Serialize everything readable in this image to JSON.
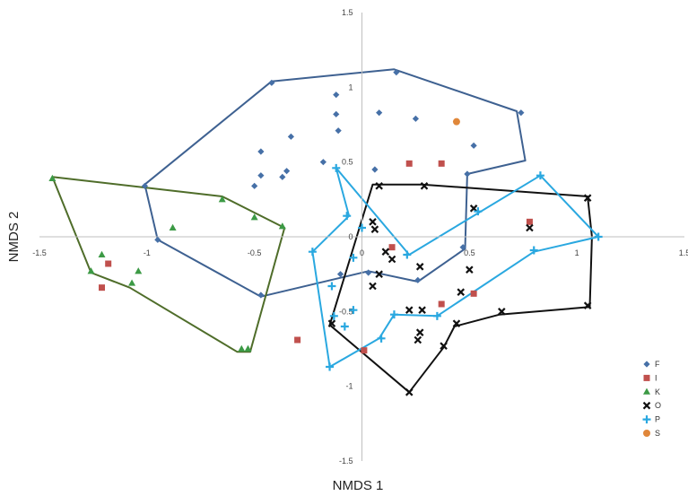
{
  "chart_data": {
    "type": "scatter",
    "xlabel": "NMDS 1",
    "ylabel": "NMDS 2",
    "xlim": [
      -1.5,
      1.5
    ],
    "ylim": [
      -1.5,
      1.5
    ],
    "x_ticks": [
      "-1.5",
      "-1",
      "-0.5",
      "0",
      "0.5",
      "1",
      "1.5"
    ],
    "y_ticks": [
      "-1.5",
      "-1",
      "-0.5",
      "0",
      "0.5",
      "1",
      "1.5"
    ],
    "grid": false,
    "legend_position": "right",
    "series": [
      {
        "name": "F",
        "marker": "diamond",
        "color": "#4670a7",
        "points": [
          [
            -0.42,
            1.03
          ],
          [
            0.16,
            1.1
          ],
          [
            -0.12,
            0.95
          ],
          [
            0.08,
            0.83
          ],
          [
            -0.12,
            0.82
          ],
          [
            0.25,
            0.79
          ],
          [
            0.74,
            0.83
          ],
          [
            -0.33,
            0.67
          ],
          [
            -0.11,
            0.71
          ],
          [
            0.52,
            0.61
          ],
          [
            -0.47,
            0.57
          ],
          [
            -0.18,
            0.5
          ],
          [
            0.06,
            0.45
          ],
          [
            0.49,
            0.42
          ],
          [
            -0.35,
            0.44
          ],
          [
            -0.37,
            0.4
          ],
          [
            -0.47,
            0.41
          ],
          [
            -0.5,
            0.34
          ],
          [
            -1.01,
            0.34
          ],
          [
            -0.95,
            -0.02
          ],
          [
            -0.47,
            -0.39
          ],
          [
            -0.1,
            -0.25
          ],
          [
            0.03,
            -0.24
          ],
          [
            0.26,
            -0.29
          ],
          [
            0.47,
            -0.07
          ]
        ]
      },
      {
        "name": "I",
        "marker": "square",
        "color": "#c0504d",
        "points": [
          [
            0.22,
            0.49
          ],
          [
            0.37,
            0.49
          ],
          [
            -1.18,
            -0.18
          ],
          [
            -1.21,
            -0.34
          ],
          [
            0.14,
            -0.07
          ],
          [
            0.52,
            -0.38
          ],
          [
            0.37,
            -0.45
          ],
          [
            -0.3,
            -0.69
          ],
          [
            0.01,
            -0.76
          ],
          [
            0.78,
            0.1
          ]
        ]
      },
      {
        "name": "K",
        "marker": "triangle",
        "color": "#3c9a45",
        "points": [
          [
            -1.44,
            0.39
          ],
          [
            -0.65,
            0.25
          ],
          [
            -0.5,
            0.13
          ],
          [
            -0.37,
            0.07
          ],
          [
            -0.88,
            0.06
          ],
          [
            -1.21,
            -0.12
          ],
          [
            -1.26,
            -0.23
          ],
          [
            -1.04,
            -0.23
          ],
          [
            -1.07,
            -0.31
          ],
          [
            -0.56,
            -0.75
          ],
          [
            -0.53,
            -0.75
          ]
        ]
      },
      {
        "name": "O",
        "marker": "cross",
        "color": "#111111",
        "points": [
          [
            0.08,
            0.34
          ],
          [
            0.29,
            0.34
          ],
          [
            0.52,
            0.19
          ],
          [
            1.05,
            0.26
          ],
          [
            0.78,
            0.06
          ],
          [
            0.05,
            0.1
          ],
          [
            0.06,
            0.05
          ],
          [
            0.11,
            -0.1
          ],
          [
            0.14,
            -0.15
          ],
          [
            0.27,
            -0.2
          ],
          [
            0.5,
            -0.22
          ],
          [
            0.08,
            -0.25
          ],
          [
            0.05,
            -0.33
          ],
          [
            0.46,
            -0.37
          ],
          [
            0.22,
            -0.49
          ],
          [
            0.28,
            -0.49
          ],
          [
            0.65,
            -0.5
          ],
          [
            1.05,
            -0.46
          ],
          [
            0.44,
            -0.58
          ],
          [
            0.27,
            -0.64
          ],
          [
            0.26,
            -0.69
          ],
          [
            -0.14,
            -0.58
          ],
          [
            0.38,
            -0.73
          ],
          [
            0.22,
            -1.04
          ]
        ]
      },
      {
        "name": "P",
        "marker": "plus",
        "color": "#2aa8e0",
        "points": [
          [
            -0.12,
            0.46
          ],
          [
            0.83,
            0.41
          ],
          [
            0.54,
            0.17
          ],
          [
            -0.07,
            0.14
          ],
          [
            1.1,
            0.0
          ],
          [
            0.0,
            0.06
          ],
          [
            -0.23,
            -0.1
          ],
          [
            0.21,
            -0.12
          ],
          [
            0.8,
            -0.09
          ],
          [
            -0.04,
            -0.14
          ],
          [
            -0.14,
            -0.33
          ],
          [
            0.15,
            -0.52
          ],
          [
            0.35,
            -0.53
          ],
          [
            -0.04,
            -0.49
          ],
          [
            -0.13,
            -0.53
          ],
          [
            -0.08,
            -0.6
          ],
          [
            0.09,
            -0.68
          ],
          [
            -0.15,
            -0.87
          ]
        ]
      },
      {
        "name": "S",
        "marker": "circle",
        "color": "#e0873a",
        "points": [
          [
            0.44,
            0.77
          ]
        ]
      }
    ],
    "hulls": [
      {
        "group": "F",
        "color": "#3e6191",
        "points": [
          [
            -1.01,
            0.35
          ],
          [
            -0.42,
            1.04
          ],
          [
            0.15,
            1.12
          ],
          [
            0.72,
            0.84
          ],
          [
            0.76,
            0.51
          ],
          [
            0.49,
            0.42
          ],
          [
            0.48,
            -0.08
          ],
          [
            0.26,
            -0.3
          ],
          [
            0.03,
            -0.23
          ],
          [
            -0.47,
            -0.4
          ],
          [
            -0.95,
            -0.02
          ]
        ]
      },
      {
        "group": "K",
        "color": "#4f6d2a",
        "points": [
          [
            -1.44,
            0.4
          ],
          [
            -0.65,
            0.27
          ],
          [
            -0.36,
            0.06
          ],
          [
            -0.52,
            -0.77
          ],
          [
            -0.58,
            -0.77
          ],
          [
            -1.08,
            -0.34
          ],
          [
            -1.26,
            -0.24
          ]
        ]
      },
      {
        "group": "O",
        "color": "#111111",
        "points": [
          [
            0.05,
            0.35
          ],
          [
            0.28,
            0.35
          ],
          [
            1.05,
            0.27
          ],
          [
            1.07,
            0.0
          ],
          [
            1.06,
            -0.47
          ],
          [
            0.64,
            -0.52
          ],
          [
            0.43,
            -0.6
          ],
          [
            0.38,
            -0.74
          ],
          [
            0.22,
            -1.04
          ],
          [
            -0.15,
            -0.59
          ]
        ]
      },
      {
        "group": "P",
        "color": "#2aa8e0",
        "points": [
          [
            -0.12,
            0.46
          ],
          [
            -0.06,
            0.14
          ],
          [
            -0.23,
            -0.1
          ],
          [
            -0.15,
            -0.87
          ],
          [
            0.08,
            -0.68
          ],
          [
            0.15,
            -0.52
          ],
          [
            0.35,
            -0.53
          ],
          [
            0.8,
            -0.1
          ],
          [
            1.1,
            0.0
          ],
          [
            0.83,
            0.41
          ],
          [
            0.22,
            -0.12
          ],
          [
            -0.12,
            0.46
          ]
        ]
      }
    ]
  }
}
